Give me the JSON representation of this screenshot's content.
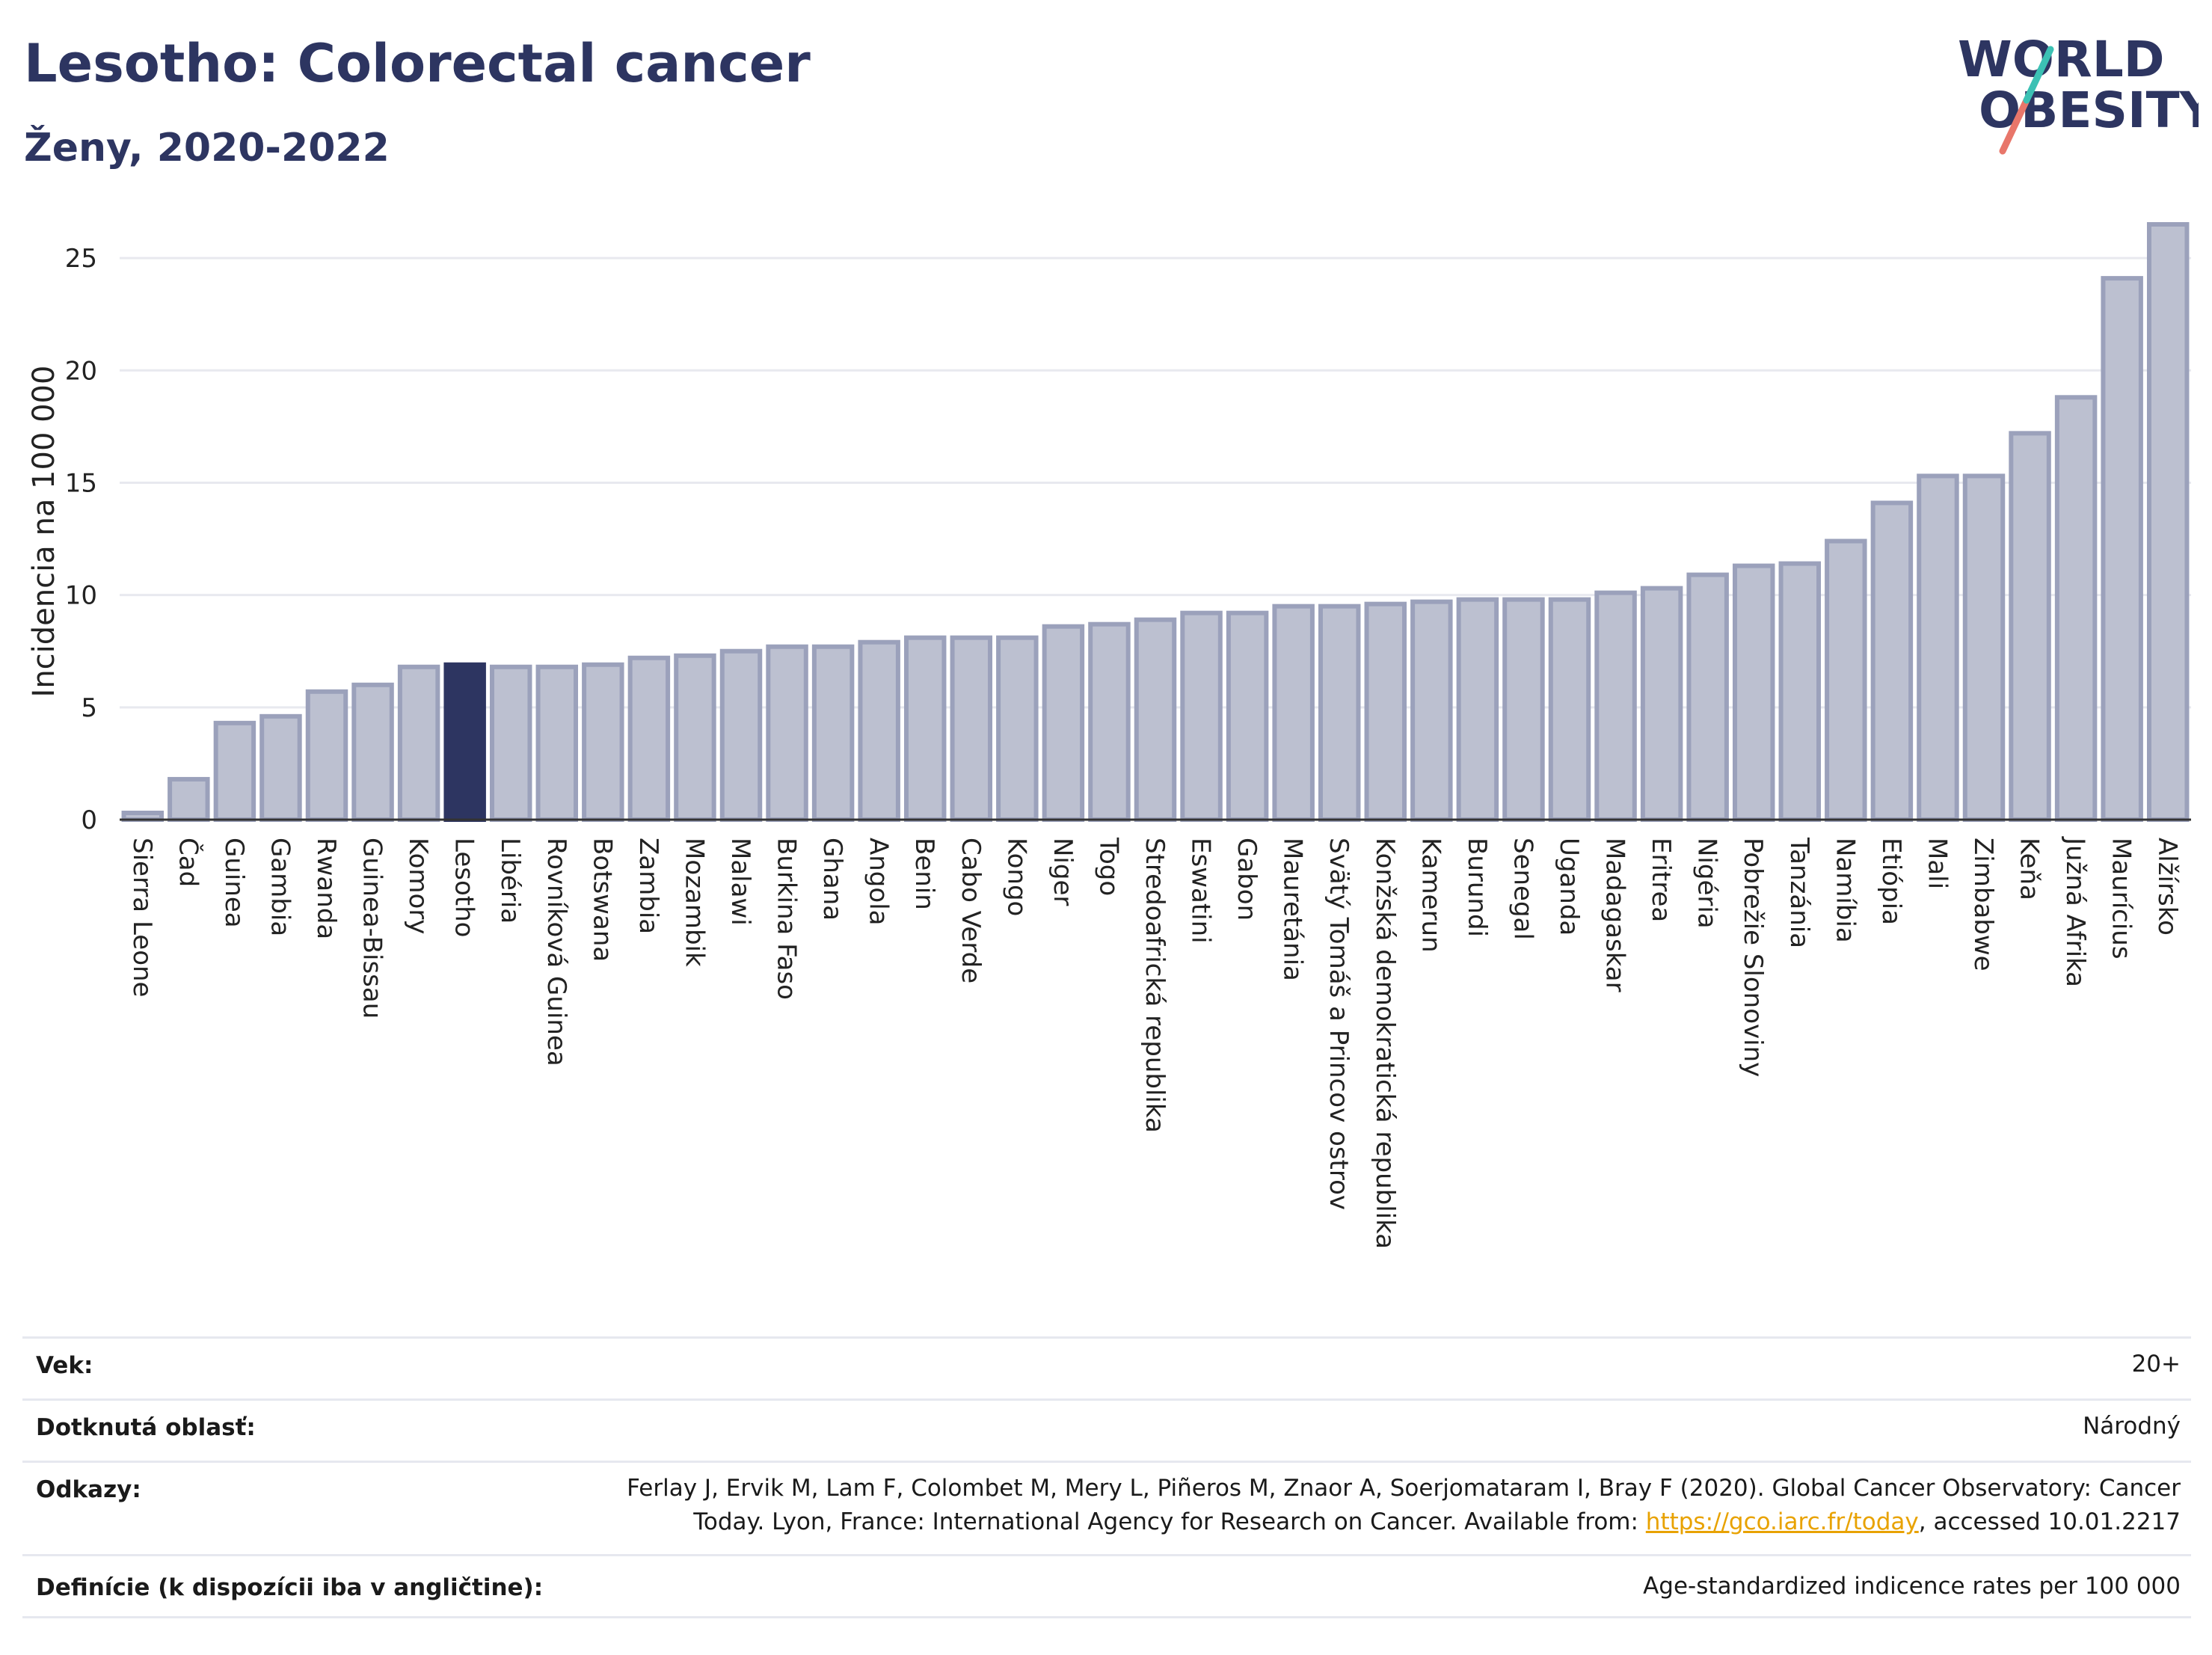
{
  "title": "Lesotho: Colorectal cancer",
  "subtitle": "Ženy, 2020-2022",
  "logo": {
    "line1": "WORLD",
    "line2": "OBESITY"
  },
  "colors": {
    "bar": "#bcc0d0",
    "bar_border": "#9ba1bb",
    "highlight": "#2d3561",
    "grid": "#e8e9ef"
  },
  "chart_data": {
    "type": "bar",
    "ylabel": "Incidencia na 100 000",
    "ylim": [
      0,
      27
    ],
    "yticks": [
      0,
      5,
      10,
      15,
      20,
      25
    ],
    "grid": true,
    "highlight": "Lesotho",
    "categories": [
      "Sierra Leone",
      "Čad",
      "Guinea",
      "Gambia",
      "Rwanda",
      "Guinea-Bissau",
      "Komory",
      "Lesotho",
      "Libéria",
      "Rovníková Guinea",
      "Botswana",
      "Zambia",
      "Mozambik",
      "Malawi",
      "Burkina Faso",
      "Ghana",
      "Angola",
      "Benin",
      "Cabo Verde",
      "Kongo",
      "Niger",
      "Togo",
      "Stredoafrická republika",
      "Eswatini",
      "Gabon",
      "Mauretánia",
      "Svätý Tomáš a Princov ostrov",
      "Konžská demokratická republika",
      "Kamerun",
      "Burundi",
      "Senegal",
      "Uganda",
      "Madagaskar",
      "Eritrea",
      "Nigéria",
      "Pobrežie Slonoviny",
      "Tanzánia",
      "Namíbia",
      "Etiópia",
      "Mali",
      "Zimbabwe",
      "Keňa",
      "Južná Afrika",
      "Maurícius",
      "Alžírsko"
    ],
    "values": [
      0.3,
      1.8,
      4.3,
      4.6,
      5.7,
      6.0,
      6.8,
      6.9,
      6.8,
      6.8,
      6.9,
      7.2,
      7.3,
      7.5,
      7.7,
      7.7,
      7.9,
      8.1,
      8.1,
      8.1,
      8.6,
      8.7,
      8.9,
      9.2,
      9.2,
      9.5,
      9.5,
      9.6,
      9.7,
      9.8,
      9.8,
      9.8,
      10.1,
      10.3,
      10.9,
      11.3,
      11.4,
      12.4,
      14.1,
      15.3,
      15.3,
      17.2,
      18.8,
      24.1,
      26.5
    ]
  },
  "footer": {
    "age_label": "Vek:",
    "age_value": "20+",
    "area_label": "Dotknutá oblasť:",
    "area_value": "Národný",
    "refs_label": "Odkazy:",
    "refs_line1": "Ferlay J, Ervik M, Lam F, Colombet M, Mery L, Piñeros M, Znaor A, Soerjomataram I, Bray F (2020). Global Cancer Observatory: Cancer",
    "refs_line2_pre": "Today. Lyon, France: International Agency for Research on Cancer. Available from: ",
    "refs_link": "https://gco.iarc.fr/today",
    "refs_line2_post": ", accessed 10.01.2217",
    "def_label": "Definície (k dispozícii iba v angličtine):",
    "def_value": "Age-standardized indicence rates per 100 000"
  }
}
